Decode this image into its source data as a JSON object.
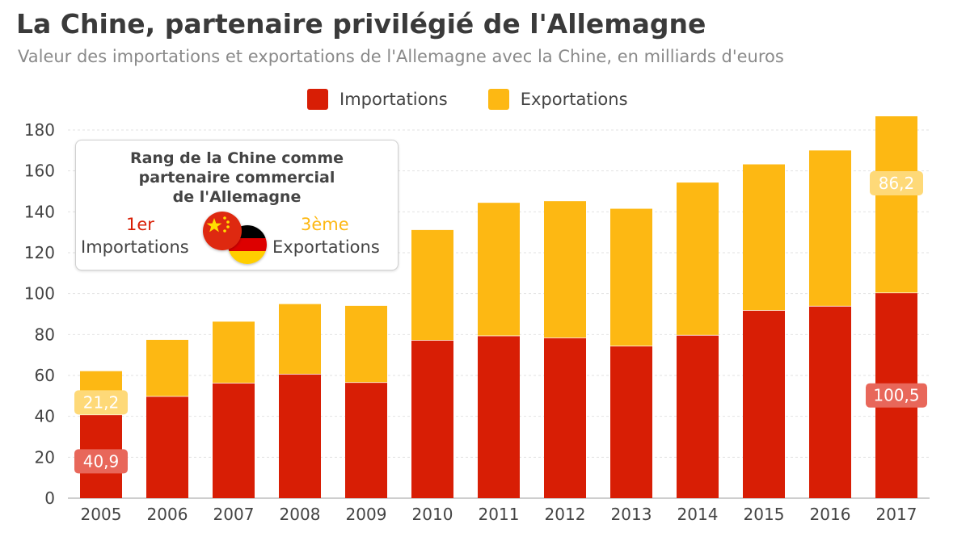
{
  "title": "La Chine, partenaire privilégié de l'Allemagne",
  "subtitle": "Valeur des importations et exportations de l'Allemagne avec la Chine, en milliards d'euros",
  "colors": {
    "imports": "#d81e05",
    "exports": "#fdb813",
    "imports_label": "#e8675a",
    "exports_label": "#fed978"
  },
  "legend": {
    "imports": "Importations",
    "exports": "Exportations"
  },
  "inset": {
    "title_line1": "Rang de la Chine comme",
    "title_line2": "partenaire commercial",
    "title_line3": "de l'Allemagne",
    "import_rank": "1er",
    "import_label": "Importations",
    "export_rank": "3ème",
    "export_label": "Exportations",
    "flags": [
      "china-flag",
      "germany-flag"
    ]
  },
  "chart_data": {
    "type": "bar",
    "stacked": true,
    "title": "La Chine, partenaire privilégié de l'Allemagne",
    "subtitle": "Valeur des importations et exportations de l'Allemagne avec la Chine, en milliards d'euros",
    "categories": [
      "2005",
      "2006",
      "2007",
      "2008",
      "2009",
      "2010",
      "2011",
      "2012",
      "2013",
      "2014",
      "2015",
      "2016",
      "2017"
    ],
    "series": [
      {
        "name": "Importations",
        "values": [
          40.9,
          49.9,
          56.4,
          60.8,
          56.7,
          77.3,
          79.5,
          78.5,
          74.5,
          79.8,
          91.9,
          94.0,
          100.5
        ]
      },
      {
        "name": "Exportations",
        "values": [
          21.2,
          27.5,
          29.9,
          34.1,
          37.3,
          53.8,
          64.9,
          66.7,
          67.0,
          74.5,
          71.3,
          76.0,
          86.2
        ]
      }
    ],
    "data_labels": [
      {
        "series": 0,
        "index": 0,
        "text": "40,9"
      },
      {
        "series": 1,
        "index": 0,
        "text": "21,2"
      },
      {
        "series": 0,
        "index": 12,
        "text": "100,5"
      },
      {
        "series": 1,
        "index": 12,
        "text": "86,2"
      }
    ],
    "ylim": [
      0,
      180
    ],
    "yticks": [
      0,
      20,
      40,
      60,
      80,
      100,
      120,
      140,
      160,
      180
    ],
    "grid": true,
    "legend_position": "top-center"
  }
}
